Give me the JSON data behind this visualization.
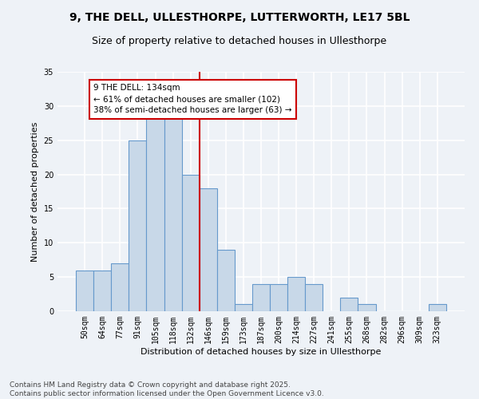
{
  "title1": "9, THE DELL, ULLESTHORPE, LUTTERWORTH, LE17 5BL",
  "title2": "Size of property relative to detached houses in Ullesthorpe",
  "xlabel": "Distribution of detached houses by size in Ullesthorpe",
  "ylabel": "Number of detached properties",
  "bins": [
    "50sqm",
    "64sqm",
    "77sqm",
    "91sqm",
    "105sqm",
    "118sqm",
    "132sqm",
    "146sqm",
    "159sqm",
    "173sqm",
    "187sqm",
    "200sqm",
    "214sqm",
    "227sqm",
    "241sqm",
    "255sqm",
    "268sqm",
    "282sqm",
    "296sqm",
    "309sqm",
    "323sqm"
  ],
  "values": [
    6,
    6,
    7,
    25,
    29,
    29,
    20,
    18,
    9,
    1,
    4,
    4,
    5,
    4,
    0,
    2,
    1,
    0,
    0,
    0,
    1
  ],
  "bar_color": "#c8d8e8",
  "bar_edge_color": "#6699cc",
  "vline_x": 6.5,
  "annotation_text": "9 THE DELL: 134sqm\n← 61% of detached houses are smaller (102)\n38% of semi-detached houses are larger (63) →",
  "annotation_box_color": "#ffffff",
  "annotation_box_edge": "#cc0000",
  "vline_color": "#cc0000",
  "ylim": [
    0,
    35
  ],
  "yticks": [
    0,
    5,
    10,
    15,
    20,
    25,
    30,
    35
  ],
  "background_color": "#eef2f7",
  "grid_color": "#ffffff",
  "footer": "Contains HM Land Registry data © Crown copyright and database right 2025.\nContains public sector information licensed under the Open Government Licence v3.0.",
  "title_fontsize": 10,
  "subtitle_fontsize": 9,
  "axis_label_fontsize": 8,
  "tick_fontsize": 7,
  "footer_fontsize": 6.5,
  "annotation_fontsize": 7.5
}
